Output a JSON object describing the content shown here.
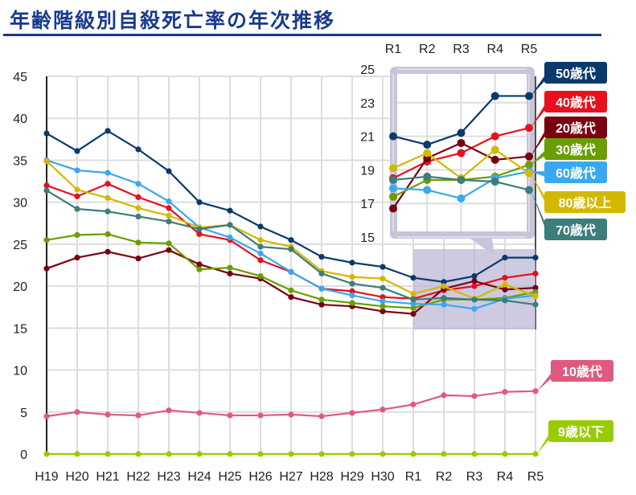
{
  "title": "年齢階級別自殺死亡率の年次推移",
  "chart_data": {
    "type": "line",
    "title": "年齢階級別自殺死亡率の年次推移",
    "categories": [
      "H19",
      "H20",
      "H21",
      "H22",
      "H23",
      "H24",
      "H25",
      "H26",
      "H27",
      "H28",
      "H29",
      "H30",
      "R1",
      "R2",
      "R3",
      "R4",
      "R5"
    ],
    "ylim": [
      0,
      45
    ],
    "yticks": [
      0,
      5,
      10,
      15,
      20,
      25,
      30,
      35,
      40,
      45
    ],
    "grid": true,
    "series": [
      {
        "name": "50歳代",
        "color": "#0a3a6b",
        "values": [
          38.2,
          36.1,
          38.5,
          36.3,
          33.7,
          30.0,
          29.0,
          27.1,
          25.5,
          23.5,
          22.8,
          22.3,
          21.0,
          20.5,
          21.2,
          23.4,
          23.4
        ]
      },
      {
        "name": "40歳代",
        "color": "#e8101e",
        "values": [
          32.0,
          30.7,
          32.2,
          30.6,
          29.3,
          26.2,
          25.5,
          23.1,
          21.7,
          19.7,
          19.4,
          18.7,
          18.5,
          19.5,
          20.0,
          21.0,
          21.5
        ]
      },
      {
        "name": "20歳代",
        "color": "#7a0010",
        "values": [
          22.1,
          23.4,
          24.1,
          23.3,
          24.3,
          22.6,
          21.5,
          20.9,
          18.7,
          17.8,
          17.6,
          17.0,
          16.7,
          19.7,
          20.6,
          19.6,
          19.8
        ]
      },
      {
        "name": "30歳代",
        "color": "#6a9e00",
        "values": [
          25.5,
          26.1,
          26.2,
          25.2,
          25.1,
          22.0,
          22.2,
          21.2,
          19.5,
          18.4,
          18.0,
          17.6,
          17.4,
          18.4,
          18.4,
          18.6,
          19.3
        ]
      },
      {
        "name": "60歳代",
        "color": "#3aa8f0",
        "values": [
          35.0,
          33.8,
          33.5,
          32.2,
          30.1,
          27.0,
          25.8,
          23.9,
          21.7,
          19.7,
          18.9,
          18.2,
          17.9,
          17.8,
          17.3,
          18.5,
          18.9
        ]
      },
      {
        "name": "80歳以上",
        "color": "#d4b800",
        "values": [
          34.9,
          31.5,
          30.5,
          29.3,
          28.4,
          27.0,
          27.3,
          25.5,
          24.7,
          21.8,
          21.1,
          20.9,
          19.1,
          20.0,
          18.5,
          20.2,
          18.8
        ]
      },
      {
        "name": "70歳代",
        "color": "#3d7d7a",
        "values": [
          31.4,
          29.2,
          28.9,
          28.3,
          27.7,
          26.8,
          27.3,
          24.7,
          24.4,
          21.5,
          20.3,
          19.8,
          18.4,
          18.6,
          18.4,
          18.3,
          17.8
        ]
      },
      {
        "name": "10歳代",
        "color": "#e05a80",
        "values": [
          4.5,
          5.0,
          4.7,
          4.6,
          5.2,
          4.9,
          4.6,
          4.6,
          4.7,
          4.5,
          4.9,
          5.3,
          5.9,
          7.0,
          6.9,
          7.4,
          7.5
        ]
      },
      {
        "name": "9歳以下",
        "color": "#99cc00",
        "values": [
          0,
          0,
          0,
          0,
          0,
          0,
          0,
          0,
          0,
          0,
          0,
          0,
          0,
          0,
          0,
          0,
          0
        ]
      }
    ],
    "inset": {
      "categories": [
        "R1",
        "R2",
        "R3",
        "R4",
        "R5"
      ],
      "ylim": [
        15,
        25
      ],
      "yticks": [
        15,
        17,
        19,
        21,
        23,
        25
      ]
    }
  }
}
